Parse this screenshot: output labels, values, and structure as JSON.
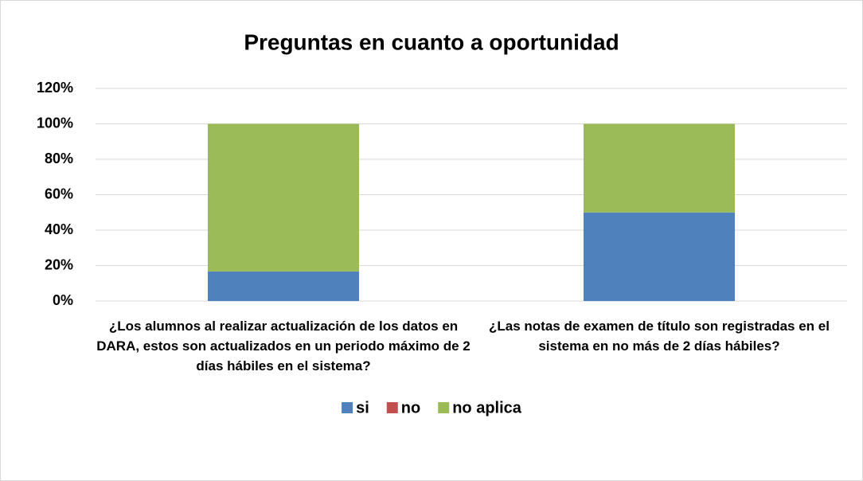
{
  "chart_data": {
    "type": "stacked_bar",
    "title": "Preguntas en cuanto a oportunidad",
    "categories": [
      "¿Los alumnos al realizar actualización de los datos en DARA, estos son actualizados en un periodo máximo de 2 días hábiles en el sistema?",
      "¿Las notas de examen de título son registradas en el sistema en no más de 2 días hábiles?"
    ],
    "series": [
      {
        "name": "si",
        "color": "#4f81bd",
        "values": [
          16.67,
          50
        ]
      },
      {
        "name": "no",
        "color": "#c0504d",
        "values": [
          0,
          0
        ]
      },
      {
        "name": "no aplica",
        "color": "#9bbb59",
        "values": [
          83.33,
          50
        ]
      }
    ],
    "ylim": [
      0,
      120
    ],
    "yticks": [
      {
        "value": 0,
        "label": "0%"
      },
      {
        "value": 20,
        "label": "20%"
      },
      {
        "value": 40,
        "label": "40%"
      },
      {
        "value": 60,
        "label": "60%"
      },
      {
        "value": 80,
        "label": "80%"
      },
      {
        "value": 100,
        "label": "100%"
      },
      {
        "value": 120,
        "label": "120%"
      }
    ],
    "grid": true,
    "legend": "bottom"
  }
}
